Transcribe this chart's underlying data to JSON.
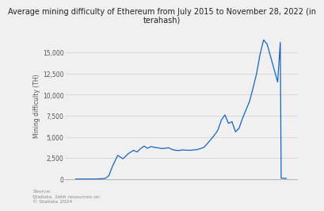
{
  "title_line1": "Average mining difficulty of Ethereum from July 2015 to November 28, 2022 (in",
  "title_line2": "terahash)",
  "ylabel": "Mining difficulty (TH)",
  "source_text": "Source:\nStatista, 2eth resources on\n© Statista 2024",
  "line_color": "#1565c0",
  "background_color": "#f0f0f0",
  "plot_bg_color": "#f0f0f0",
  "grid_color": "#d0d0d0",
  "ylim": [
    0,
    17500
  ],
  "yticks": [
    0,
    2500,
    5000,
    7500,
    10000,
    12500,
    15000
  ],
  "ytick_labels": [
    "0",
    "2,500",
    "5,000",
    "7,500",
    "10,000",
    "12,500",
    "15,000"
  ],
  "x_points": [
    0,
    4,
    8,
    12,
    15,
    17,
    19,
    21,
    24,
    27,
    30,
    33,
    35,
    37,
    39,
    41,
    43,
    45,
    47,
    49,
    51,
    53,
    55,
    57,
    59,
    61,
    63,
    65,
    67,
    69,
    71,
    73,
    75,
    77,
    79,
    81,
    83,
    85,
    87,
    89,
    91,
    93,
    95,
    97,
    99,
    101,
    103,
    105,
    107,
    109,
    111,
    113,
    115,
    116.5,
    117,
    120
  ],
  "y_points": [
    0,
    0,
    0,
    0,
    30,
    80,
    400,
    1500,
    2800,
    2400,
    3000,
    3400,
    3200,
    3600,
    3900,
    3650,
    3850,
    3750,
    3700,
    3600,
    3650,
    3700,
    3500,
    3400,
    3380,
    3450,
    3420,
    3400,
    3450,
    3480,
    3600,
    3750,
    4200,
    4700,
    5200,
    5800,
    7000,
    7600,
    6600,
    6800,
    5600,
    6000,
    7200,
    8200,
    9200,
    10800,
    12500,
    14800,
    16500,
    16000,
    14500,
    13000,
    11500,
    16200,
    100,
    80
  ],
  "title_fontsize": 7.0,
  "axis_fontsize": 5.5,
  "tick_fontsize": 5.5,
  "source_fontsize": 4.5
}
